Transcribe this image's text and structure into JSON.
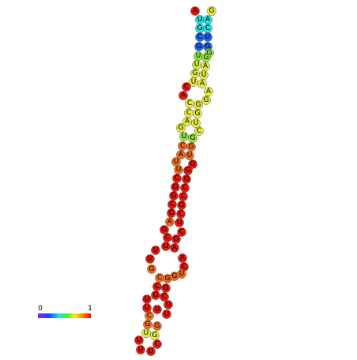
{
  "palette": {
    "r": "#e8160e",
    "o": "#ef6a1c",
    "y": "#e6ea3a",
    "yg": "#c8f03a",
    "g": "#8fe63a",
    "c": "#22e0dd",
    "b": "#1f63f0"
  },
  "nodes": [
    {
      "label": "A",
      "color": "r"
    },
    {
      "label": "G",
      "color": "y"
    },
    {
      "label": "U",
      "color": "c"
    },
    {
      "label": "A",
      "color": "c"
    },
    {
      "label": "G",
      "color": "c"
    },
    {
      "label": "C",
      "color": "c"
    },
    {
      "label": "C",
      "color": "b"
    },
    {
      "label": "U",
      "color": "b"
    },
    {
      "label": "G",
      "color": "b"
    },
    {
      "label": "G",
      "color": "b"
    },
    {
      "label": "G",
      "color": "g"
    },
    {
      "label": "U",
      "color": "g"
    },
    {
      "label": "G",
      "color": "g"
    },
    {
      "label": "U",
      "color": "yg"
    },
    {
      "label": "A",
      "color": "y"
    },
    {
      "label": "G",
      "color": "y"
    },
    {
      "label": "U",
      "color": "y"
    },
    {
      "label": "U",
      "color": "y"
    },
    {
      "label": "A",
      "color": "y"
    },
    {
      "label": "A",
      "color": "y"
    },
    {
      "label": "G",
      "color": "y"
    },
    {
      "label": "C",
      "color": "r"
    },
    {
      "label": "A",
      "color": "r"
    },
    {
      "label": "C",
      "color": "y"
    },
    {
      "label": "G",
      "color": "y"
    },
    {
      "label": "C",
      "color": "y"
    },
    {
      "label": "G",
      "color": "y"
    },
    {
      "label": "A",
      "color": "y"
    },
    {
      "label": "U",
      "color": "y"
    },
    {
      "label": "G",
      "color": "y"
    },
    {
      "label": "C",
      "color": "y"
    },
    {
      "label": "U",
      "color": "g"
    },
    {
      "label": "G",
      "color": "g"
    },
    {
      "label": "C",
      "color": "o"
    },
    {
      "label": "G",
      "color": "o"
    },
    {
      "label": "A",
      "color": "o"
    },
    {
      "label": "U",
      "color": "o"
    },
    {
      "label": "U",
      "color": "o"
    },
    {
      "label": "G",
      "color": "r"
    },
    {
      "label": "U",
      "color": "o"
    },
    {
      "label": "G",
      "color": "r"
    },
    {
      "label": "C",
      "color": "r"
    },
    {
      "label": "G",
      "color": "r"
    },
    {
      "label": "G",
      "color": "r"
    },
    {
      "label": "C",
      "color": "r"
    },
    {
      "label": "G",
      "color": "r"
    },
    {
      "label": "C",
      "color": "r"
    },
    {
      "label": "C",
      "color": "r"
    },
    {
      "label": "G",
      "color": "r"
    },
    {
      "label": "G",
      "color": "r"
    },
    {
      "label": "C",
      "color": "r"
    },
    {
      "label": "A",
      "color": "o"
    },
    {
      "label": "U",
      "color": "r"
    },
    {
      "label": "G",
      "color": "r"
    },
    {
      "label": "C",
      "color": "r"
    },
    {
      "label": "C",
      "color": "r"
    },
    {
      "label": "G",
      "color": "r"
    },
    {
      "label": "U",
      "color": "r"
    },
    {
      "label": "A",
      "color": "r"
    },
    {
      "label": "U",
      "color": "r"
    },
    {
      "label": "A",
      "color": "r"
    },
    {
      "label": "U",
      "color": "r"
    },
    {
      "label": "C",
      "color": "r"
    },
    {
      "label": "G",
      "color": "o"
    },
    {
      "label": "U",
      "color": "o"
    },
    {
      "label": "C",
      "color": "o"
    },
    {
      "label": "G",
      "color": "o"
    },
    {
      "label": "G",
      "color": "o"
    },
    {
      "label": "C",
      "color": "r"
    },
    {
      "label": "G",
      "color": "r"
    },
    {
      "label": "G",
      "color": "r"
    },
    {
      "label": "C",
      "color": "r"
    },
    {
      "label": "U",
      "color": "r"
    },
    {
      "label": "U",
      "color": "r"
    },
    {
      "label": "U",
      "color": "r"
    },
    {
      "label": "U",
      "color": "r"
    },
    {
      "label": "C",
      "color": "o"
    },
    {
      "label": "U",
      "color": "r"
    },
    {
      "label": "G",
      "color": "o"
    },
    {
      "label": "G",
      "color": "o"
    },
    {
      "label": "U",
      "color": "y"
    },
    {
      "label": "G",
      "color": "y"
    },
    {
      "label": "U",
      "color": "r"
    },
    {
      "label": "C",
      "color": "r"
    },
    {
      "label": "U",
      "color": "r"
    },
    {
      "label": "U",
      "color": "r"
    }
  ],
  "colorbar": {
    "min": 0,
    "max": 1
  }
}
